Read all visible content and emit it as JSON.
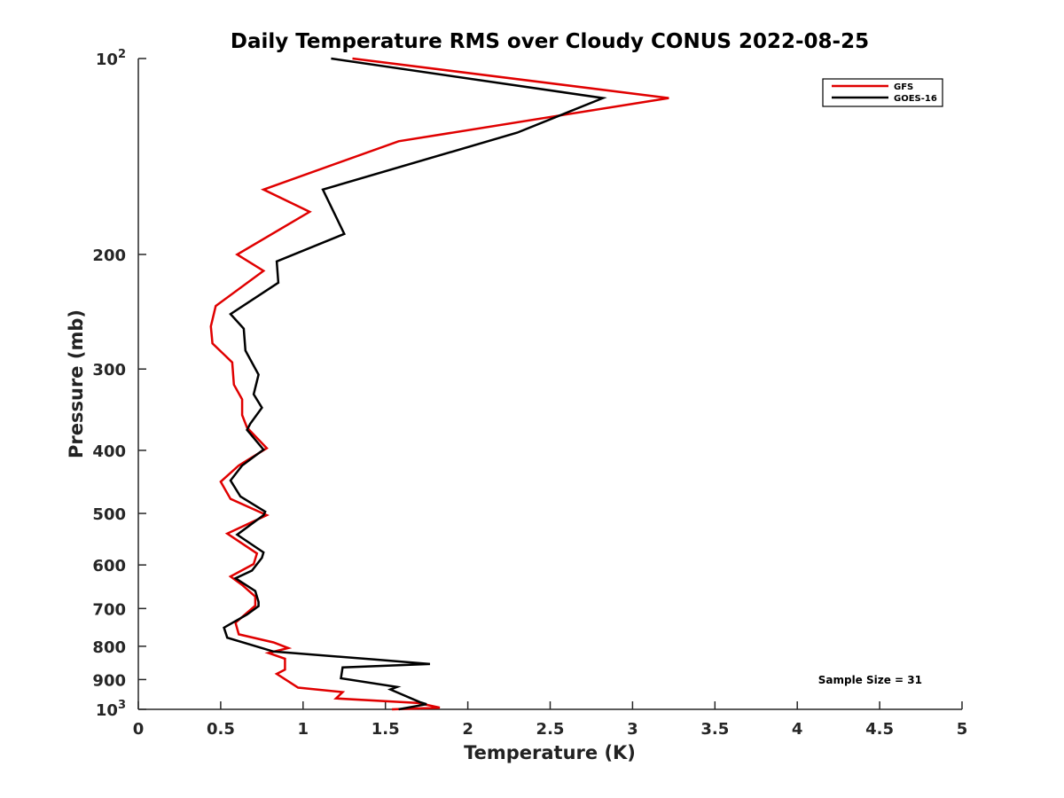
{
  "chart_data": {
    "type": "line",
    "title": "Daily Temperature RMS over Cloudy CONUS 2022-08-25",
    "xlabel": "Temperature (K)",
    "ylabel": "Pressure (mb)",
    "xlim": [
      0,
      5
    ],
    "ylim": [
      100,
      1000
    ],
    "y_scale": "log",
    "y_reversed": true,
    "x_ticks": [
      "0",
      "0.5",
      "1",
      "1.5",
      "2",
      "2.5",
      "3",
      "3.5",
      "4",
      "4.5",
      "5"
    ],
    "y_ticks": [
      {
        "value": 100,
        "base": "10",
        "exp": "2"
      },
      {
        "value": 200,
        "label": "200"
      },
      {
        "value": 300,
        "label": "300"
      },
      {
        "value": 400,
        "label": "400"
      },
      {
        "value": 500,
        "label": "500"
      },
      {
        "value": 600,
        "label": "600"
      },
      {
        "value": 700,
        "label": "700"
      },
      {
        "value": 800,
        "label": "800"
      },
      {
        "value": 900,
        "label": "900"
      },
      {
        "value": 1000,
        "base": "10",
        "exp": "3"
      }
    ],
    "legend_position": "top-right",
    "grid": false,
    "annotation": "Sample Size = 31",
    "series": [
      {
        "name": "GFS",
        "color": "#e00000",
        "points": [
          [
            1.3,
            100
          ],
          [
            3.22,
            115
          ],
          [
            1.58,
            134
          ],
          [
            0.76,
            159
          ],
          [
            1.04,
            172
          ],
          [
            0.6,
            200
          ],
          [
            0.76,
            212
          ],
          [
            0.47,
            240
          ],
          [
            0.44,
            258
          ],
          [
            0.45,
            274
          ],
          [
            0.57,
            293
          ],
          [
            0.58,
            317
          ],
          [
            0.63,
            334
          ],
          [
            0.63,
            353
          ],
          [
            0.66,
            369
          ],
          [
            0.78,
            397
          ],
          [
            0.61,
            422
          ],
          [
            0.5,
            447
          ],
          [
            0.56,
            475
          ],
          [
            0.78,
            503
          ],
          [
            0.54,
            537
          ],
          [
            0.72,
            576
          ],
          [
            0.7,
            598
          ],
          [
            0.56,
            625
          ],
          [
            0.63,
            644
          ],
          [
            0.71,
            671
          ],
          [
            0.71,
            693
          ],
          [
            0.59,
            736
          ],
          [
            0.61,
            767
          ],
          [
            0.82,
            789
          ],
          [
            0.91,
            805
          ],
          [
            0.79,
            819
          ],
          [
            0.89,
            836
          ],
          [
            0.89,
            869
          ],
          [
            0.84,
            882
          ],
          [
            0.97,
            926
          ],
          [
            1.24,
            941
          ],
          [
            1.2,
            962
          ],
          [
            1.7,
            978
          ],
          [
            1.83,
            994
          ],
          [
            1.54,
            1000
          ]
        ]
      },
      {
        "name": "GOES-16",
        "color": "#000000",
        "points": [
          [
            1.17,
            100
          ],
          [
            2.82,
            115
          ],
          [
            2.3,
            130
          ],
          [
            1.12,
            159
          ],
          [
            1.25,
            186
          ],
          [
            0.84,
            205
          ],
          [
            0.85,
            221
          ],
          [
            0.56,
            247
          ],
          [
            0.64,
            260
          ],
          [
            0.65,
            281
          ],
          [
            0.73,
            306
          ],
          [
            0.7,
            328
          ],
          [
            0.75,
            344
          ],
          [
            0.68,
            364
          ],
          [
            0.66,
            372
          ],
          [
            0.76,
            399
          ],
          [
            0.63,
            422
          ],
          [
            0.56,
            445
          ],
          [
            0.62,
            471
          ],
          [
            0.77,
            497
          ],
          [
            0.76,
            503
          ],
          [
            0.6,
            539
          ],
          [
            0.76,
            574
          ],
          [
            0.75,
            585
          ],
          [
            0.69,
            612
          ],
          [
            0.59,
            629
          ],
          [
            0.71,
            658
          ],
          [
            0.73,
            684
          ],
          [
            0.73,
            694
          ],
          [
            0.66,
            715
          ],
          [
            0.52,
            749
          ],
          [
            0.54,
            776
          ],
          [
            0.82,
            815
          ],
          [
            1.45,
            839
          ],
          [
            1.77,
            852
          ],
          [
            1.24,
            862
          ],
          [
            1.23,
            896
          ],
          [
            1.57,
            924
          ],
          [
            1.53,
            932
          ],
          [
            1.71,
            975
          ],
          [
            1.75,
            982
          ],
          [
            1.58,
            1000
          ]
        ]
      }
    ]
  }
}
